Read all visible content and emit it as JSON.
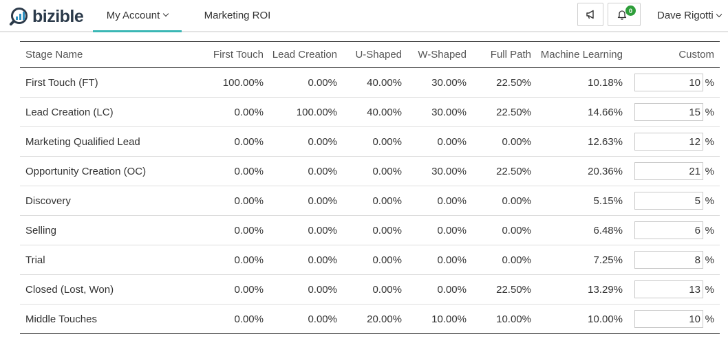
{
  "brand": {
    "name": "bizible"
  },
  "nav": {
    "tabs": [
      {
        "label": "My Account"
      },
      {
        "label": "Marketing ROI"
      }
    ],
    "notifications_count": "0",
    "user_name": "Dave Rigotti"
  },
  "colors": {
    "accent": "#3ab7b5",
    "badge": "#2e9e3a",
    "logo_dark": "#2b3a4a",
    "logo_blue": "#2b8fbf"
  },
  "table": {
    "headers": [
      "Stage Name",
      "First Touch",
      "Lead Creation",
      "U-Shaped",
      "W-Shaped",
      "Full Path",
      "Machine Learning",
      "Custom"
    ],
    "percent_symbol": "%",
    "rows": [
      {
        "stage": "First Touch (FT)",
        "first_touch": "100.00%",
        "lead_creation": "0.00%",
        "u_shaped": "40.00%",
        "w_shaped": "30.00%",
        "full_path": "22.50%",
        "machine_learning": "10.18%",
        "custom": "10"
      },
      {
        "stage": "Lead Creation (LC)",
        "first_touch": "0.00%",
        "lead_creation": "100.00%",
        "u_shaped": "40.00%",
        "w_shaped": "30.00%",
        "full_path": "22.50%",
        "machine_learning": "14.66%",
        "custom": "15"
      },
      {
        "stage": "Marketing Qualified Lead",
        "first_touch": "0.00%",
        "lead_creation": "0.00%",
        "u_shaped": "0.00%",
        "w_shaped": "0.00%",
        "full_path": "0.00%",
        "machine_learning": "12.63%",
        "custom": "12"
      },
      {
        "stage": "Opportunity Creation (OC)",
        "first_touch": "0.00%",
        "lead_creation": "0.00%",
        "u_shaped": "0.00%",
        "w_shaped": "30.00%",
        "full_path": "22.50%",
        "machine_learning": "20.36%",
        "custom": "21"
      },
      {
        "stage": "Discovery",
        "first_touch": "0.00%",
        "lead_creation": "0.00%",
        "u_shaped": "0.00%",
        "w_shaped": "0.00%",
        "full_path": "0.00%",
        "machine_learning": "5.15%",
        "custom": "5"
      },
      {
        "stage": "Selling",
        "first_touch": "0.00%",
        "lead_creation": "0.00%",
        "u_shaped": "0.00%",
        "w_shaped": "0.00%",
        "full_path": "0.00%",
        "machine_learning": "6.48%",
        "custom": "6"
      },
      {
        "stage": "Trial",
        "first_touch": "0.00%",
        "lead_creation": "0.00%",
        "u_shaped": "0.00%",
        "w_shaped": "0.00%",
        "full_path": "0.00%",
        "machine_learning": "7.25%",
        "custom": "8"
      },
      {
        "stage": "Closed (Lost, Won)",
        "first_touch": "0.00%",
        "lead_creation": "0.00%",
        "u_shaped": "0.00%",
        "w_shaped": "0.00%",
        "full_path": "22.50%",
        "machine_learning": "13.29%",
        "custom": "13"
      },
      {
        "stage": "Middle Touches",
        "first_touch": "0.00%",
        "lead_creation": "0.00%",
        "u_shaped": "20.00%",
        "w_shaped": "10.00%",
        "full_path": "10.00%",
        "machine_learning": "10.00%",
        "custom": "10"
      }
    ]
  }
}
